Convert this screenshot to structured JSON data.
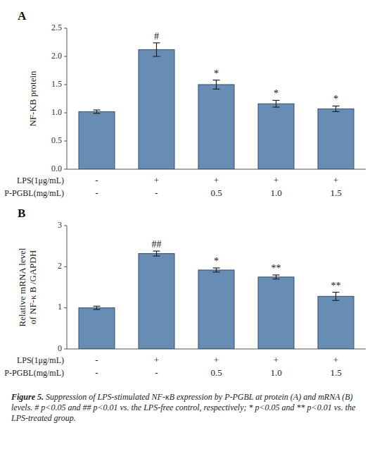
{
  "chart_data": [
    {
      "type": "bar",
      "title": "A",
      "ylabel": "NF-KB protein",
      "categories": [
        [
          "-",
          "-"
        ],
        [
          "+",
          "-"
        ],
        [
          "+",
          "0.5"
        ],
        [
          "+",
          "1.0"
        ],
        [
          "+",
          "1.5"
        ]
      ],
      "category_rows": [
        "LPS(1μg/mL)",
        "P-PGBL(mg/mL)"
      ],
      "values": [
        1.02,
        2.12,
        1.5,
        1.16,
        1.07
      ],
      "errors": [
        0.03,
        0.12,
        0.08,
        0.06,
        0.05
      ],
      "annotations": [
        null,
        "#",
        "*",
        "*",
        "*"
      ],
      "ylim": [
        0,
        2.5
      ],
      "yticks": [
        {
          "value": 0.0,
          "label": "0.0"
        },
        0.5,
        {
          "value": 1.0,
          "label": "1.0"
        },
        1.5,
        {
          "value": 2.0,
          "label": "2.0"
        },
        2.5
      ],
      "grid": false
    },
    {
      "type": "bar",
      "title": "B",
      "ylabel": "Relative mRNA level\nof NF-κ B /GAPDH",
      "categories": [
        [
          "-",
          "-"
        ],
        [
          "+",
          "-"
        ],
        [
          "+",
          "0.5"
        ],
        [
          "+",
          "1.0"
        ],
        [
          "+",
          "1.5"
        ]
      ],
      "category_rows": [
        "LPS(1μg/mL)",
        "P-PGBL(mg/mL)"
      ],
      "values": [
        1.0,
        2.32,
        1.92,
        1.75,
        1.28
      ],
      "errors": [
        0.04,
        0.06,
        0.05,
        0.05,
        0.1
      ],
      "annotations": [
        null,
        "##",
        "*",
        "**",
        "**"
      ],
      "ylim": [
        0,
        3
      ],
      "yticks": [
        0,
        1,
        2,
        3
      ],
      "grid": false
    }
  ],
  "caption_title": "Figure 5.",
  "caption": " Suppression of LPS-stimulated NF-κB expression by P-PGBL at protein (A) and mRNA (B) levels. # p<0.05 and ## p<0.01 vs. the LPS-free control, respectively;  * p<0.05 and ** p<0.01 vs. the LPS-treated group."
}
